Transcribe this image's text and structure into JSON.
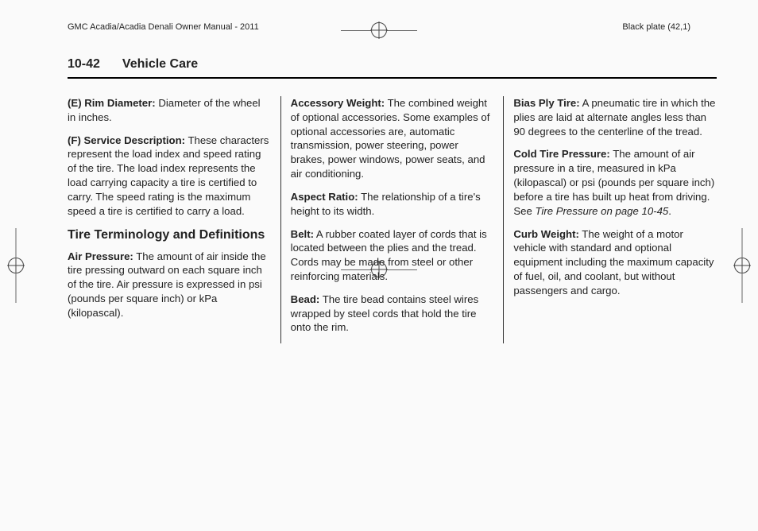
{
  "header": {
    "left": "GMC Acadia/Acadia Denali Owner Manual - 2011",
    "right": "Black plate (42,1)"
  },
  "page": {
    "number": "10-42",
    "title": "Vehicle Care"
  },
  "col1": {
    "e_label": "(E) Rim Diameter:",
    "e_text": "  Diameter of the wheel in inches.",
    "f_label": "(F) Service Description:",
    "f_text": "  These characters represent the load index and speed rating of the tire. The load index represents the load carrying capacity a tire is certified to carry. The speed rating is the maximum speed a tire is certified to carry a load.",
    "heading": "Tire Terminology and Definitions",
    "air_label": "Air Pressure:",
    "air_text": "  The amount of air inside the tire pressing outward on each square inch of the tire. Air pressure is expressed in psi (pounds per square inch) or kPa (kilopascal)."
  },
  "col2": {
    "acc_label": "Accessory Weight:",
    "acc_text": "  The combined weight of optional accessories. Some examples of optional accessories are, automatic transmission, power steering, power brakes, power windows, power seats, and air conditioning.",
    "asp_label": "Aspect Ratio:",
    "asp_text": "  The relationship of a tire's height to its width.",
    "belt_label": "Belt:",
    "belt_text": "  A rubber coated layer of cords that is located between the plies and the tread. Cords may be made from steel or other reinforcing materials.",
    "bead_label": "Bead:",
    "bead_text": "  The tire bead contains steel wires wrapped by steel cords that hold the tire onto the rim."
  },
  "col3": {
    "bias_label": "Bias Ply Tire:",
    "bias_text": "  A pneumatic tire in which the plies are laid at alternate angles less than 90 degrees to the centerline of the tread.",
    "cold_label": "Cold Tire Pressure:",
    "cold_text_a": "  The amount of air pressure in a tire, measured in kPa (kilopascal) or psi (pounds per square inch) before a tire has built up heat from driving. See ",
    "cold_ref": "Tire Pressure on page 10-45",
    "cold_text_b": ".",
    "curb_label": "Curb Weight:",
    "curb_text": "  The weight of a motor vehicle with standard and optional equipment including the maximum capacity of fuel, oil, and coolant, but without passengers and cargo."
  }
}
